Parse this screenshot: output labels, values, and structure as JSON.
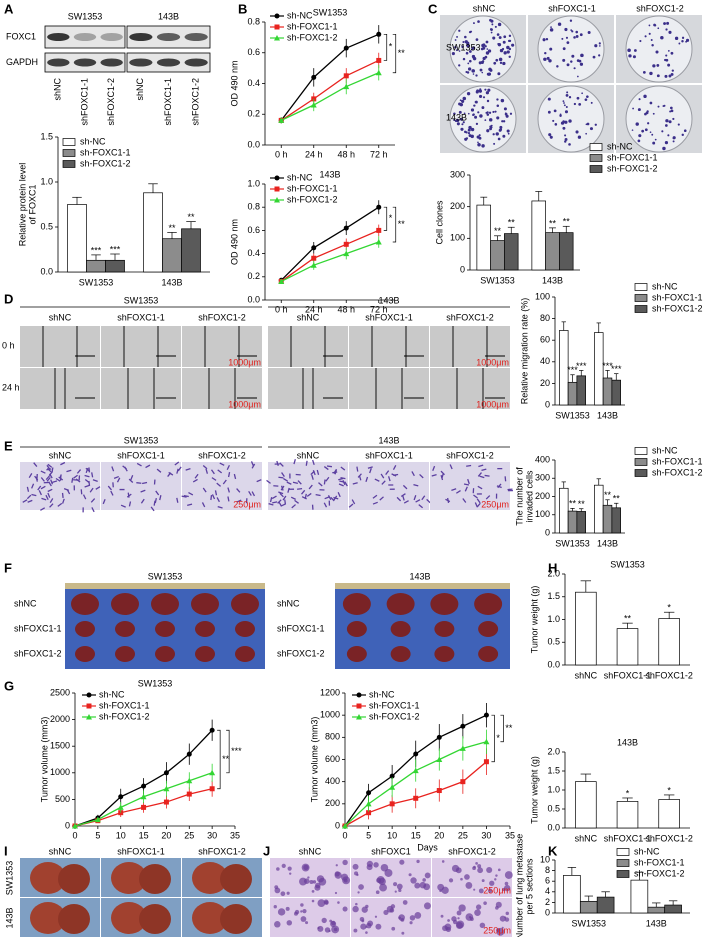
{
  "panel_letters": [
    "A",
    "B",
    "C",
    "D",
    "E",
    "F",
    "G",
    "H",
    "I",
    "J",
    "K"
  ],
  "blot": {
    "proteins": [
      "FOXC1",
      "GAPDH"
    ],
    "groups": [
      "SW1353",
      "143B"
    ],
    "lanes": [
      "shNC",
      "shFOXC1-1",
      "shFOXC1-2"
    ]
  },
  "colonies": {
    "columns": [
      "shNC",
      "shFOXC1-1",
      "shFOXC1-2"
    ],
    "rows": [
      "SW1353",
      "143B"
    ]
  },
  "wound": {
    "groups": [
      "SW1353",
      "143B"
    ],
    "columns": [
      "shNC",
      "shFOXC1-1",
      "shFOXC1-2"
    ],
    "rows": [
      "0 h",
      "24 h"
    ],
    "scale_bar": "1000μm"
  },
  "invasion": {
    "groups": [
      "SW1353",
      "143B"
    ],
    "columns": [
      "shNC",
      "shFOXC1-1",
      "shFOXC1-2"
    ],
    "scale_bar": "250μm"
  },
  "tumors": {
    "groups": [
      "SW1353",
      "143B"
    ],
    "rows": [
      "shNC",
      "shFOXC1-1",
      "shFOXC1-2"
    ]
  },
  "lungs": {
    "columns": [
      "shNC",
      "shFOXC1-1",
      "shFOXC1-2"
    ],
    "rows": [
      "SW1353",
      "143B"
    ]
  },
  "histology": {
    "columns": [
      "shNC",
      "shFOXC1",
      "shFOXC1-2"
    ],
    "scale_bar": "250μm"
  },
  "chart_data": [
    {
      "type": "bar",
      "ylabel": [
        "Relative protein level",
        "of FOXC1"
      ],
      "categories": [
        "SW1353",
        "143B"
      ],
      "series": [
        {
          "name": "sh-NC",
          "color": "#ffffff",
          "values": [
            0.75,
            0.88
          ],
          "errors": [
            0.08,
            0.1
          ]
        },
        {
          "name": "sh-FOXC1-1",
          "color": "#8c8c8c",
          "values": [
            0.13,
            0.37
          ],
          "errors": [
            0.06,
            0.07
          ],
          "significance": [
            "***",
            "**"
          ]
        },
        {
          "name": "sh-FOXC1-2",
          "color": "#5a5a5a",
          "values": [
            0.13,
            0.48
          ],
          "errors": [
            0.07,
            0.08
          ],
          "significance": [
            "***",
            "**"
          ]
        }
      ],
      "ylim": [
        0,
        1.5
      ],
      "yticks": [
        {
          "value": 0,
          "label": "0.0"
        },
        0.5,
        {
          "value": 1,
          "label": "1.0"
        },
        1.5
      ],
      "legend": "upper left"
    },
    {
      "type": "line",
      "title": "SW1353",
      "ylabel": [
        "OD 490 nm"
      ],
      "categories": [
        "0 h",
        "24 h",
        "48 h",
        "72 h"
      ],
      "series": [
        {
          "name": "sh-NC",
          "color": "#000000",
          "values": [
            0.16,
            0.44,
            0.63,
            0.72
          ],
          "errors": [
            0.02,
            0.06,
            0.06,
            0.06
          ]
        },
        {
          "name": "sh-FOXC1-1",
          "color": "#e8231f",
          "values": [
            0.16,
            0.3,
            0.45,
            0.55
          ],
          "errors": [
            0.02,
            0.04,
            0.05,
            0.05
          ]
        },
        {
          "name": "sh-FOXC1-2",
          "color": "#33d633",
          "values": [
            0.16,
            0.26,
            0.38,
            0.47
          ],
          "errors": [
            0.02,
            0.04,
            0.05,
            0.05
          ]
        }
      ],
      "ylim": [
        0,
        0.8
      ],
      "yticks": [
        {
          "value": 0,
          "label": "0.0"
        },
        0.2,
        0.4,
        0.6,
        0.8
      ],
      "significance": [
        "*",
        "**"
      ],
      "legend": "upper left"
    },
    {
      "type": "line",
      "title": "143B",
      "ylabel": [
        "OD 490 nm"
      ],
      "categories": [
        "0 h",
        "24 h",
        "48 h",
        "72 h"
      ],
      "series": [
        {
          "name": "sh-NC",
          "color": "#000000",
          "values": [
            0.17,
            0.45,
            0.62,
            0.8
          ],
          "errors": [
            0.02,
            0.05,
            0.06,
            0.06
          ]
        },
        {
          "name": "sh-FOXC1-1",
          "color": "#e8231f",
          "values": [
            0.16,
            0.36,
            0.48,
            0.6
          ],
          "errors": [
            0.02,
            0.04,
            0.05,
            0.05
          ]
        },
        {
          "name": "sh-FOXC1-2",
          "color": "#33d633",
          "values": [
            0.16,
            0.3,
            0.4,
            0.5
          ],
          "errors": [
            0.02,
            0.04,
            0.05,
            0.05
          ]
        }
      ],
      "ylim": [
        0,
        1
      ],
      "yticks": [
        {
          "value": 0,
          "label": "0.0"
        },
        0.2,
        0.4,
        0.6,
        0.8,
        {
          "value": 1,
          "label": "1.0"
        }
      ],
      "significance": [
        "*",
        "**"
      ],
      "legend": "upper left"
    },
    {
      "type": "bar",
      "ylabel": [
        "Cell clones"
      ],
      "categories": [
        "SW1353",
        "143B"
      ],
      "series": [
        {
          "name": "sh-NC",
          "color": "#ffffff",
          "values": [
            205,
            218
          ],
          "errors": [
            25,
            30
          ]
        },
        {
          "name": "sh-FOXC1-1",
          "color": "#8c8c8c",
          "values": [
            93,
            118
          ],
          "errors": [
            15,
            15
          ],
          "significance": [
            "**",
            "**"
          ]
        },
        {
          "name": "sh-FOXC1-2",
          "color": "#5a5a5a",
          "values": [
            115,
            118
          ],
          "errors": [
            20,
            20
          ],
          "significance": [
            "**",
            "**"
          ]
        }
      ],
      "ylim": [
        0,
        300
      ],
      "yticks": [
        0,
        100,
        200,
        300
      ],
      "legend": "outside upper right"
    },
    {
      "type": "bar",
      "ylabel": [
        "Relative migration rate (%)"
      ],
      "categories": [
        "SW1353",
        "143B"
      ],
      "series": [
        {
          "name": "sh-NC",
          "color": "#ffffff",
          "values": [
            69,
            67
          ],
          "errors": [
            8,
            9
          ]
        },
        {
          "name": "sh-FOXC1-1",
          "color": "#8c8c8c",
          "values": [
            21,
            25
          ],
          "errors": [
            7,
            7
          ],
          "significance": [
            "***",
            "***"
          ]
        },
        {
          "name": "sh-FOXC1-2",
          "color": "#5a5a5a",
          "values": [
            27,
            23
          ],
          "errors": [
            5,
            6
          ],
          "significance": [
            "***",
            "***"
          ]
        }
      ],
      "ylim": [
        0,
        100
      ],
      "yticks": [
        0,
        20,
        40,
        60,
        80,
        100
      ],
      "legend": "outside upper right"
    },
    {
      "type": "bar",
      "ylabel": [
        "The number of",
        "invaded cells"
      ],
      "categories": [
        "SW1353",
        "143B"
      ],
      "series": [
        {
          "name": "sh-NC",
          "color": "#ffffff",
          "values": [
            245,
            262
          ],
          "errors": [
            35,
            35
          ]
        },
        {
          "name": "sh-FOXC1-1",
          "color": "#8c8c8c",
          "values": [
            120,
            152
          ],
          "errors": [
            15,
            30
          ],
          "significance": [
            "**",
            "**"
          ]
        },
        {
          "name": "sh-FOXC1-2",
          "color": "#5a5a5a",
          "values": [
            118,
            138
          ],
          "errors": [
            15,
            25
          ],
          "significance": [
            "**",
            "**"
          ]
        }
      ],
      "ylim": [
        0,
        400
      ],
      "yticks": [
        0,
        100,
        200,
        300,
        400
      ],
      "legend": "outside upper right"
    },
    {
      "type": "line",
      "title": "SW1353",
      "ylabel": [
        "Tumor volume (mm3)"
      ],
      "x": [
        0,
        5,
        10,
        15,
        20,
        25,
        30
      ],
      "series": [
        {
          "name": "sh-NC",
          "color": "#000000",
          "values": [
            0,
            150,
            550,
            750,
            1000,
            1350,
            1800
          ],
          "errors": [
            0,
            60,
            150,
            150,
            200,
            200,
            200
          ]
        },
        {
          "name": "sh-FOXC1-1",
          "color": "#e8231f",
          "values": [
            0,
            100,
            250,
            350,
            450,
            600,
            700
          ],
          "errors": [
            0,
            40,
            80,
            100,
            120,
            130,
            150
          ]
        },
        {
          "name": "sh-FOXC1-2",
          "color": "#33d633",
          "values": [
            0,
            120,
            350,
            550,
            700,
            850,
            1000
          ],
          "errors": [
            0,
            50,
            100,
            120,
            150,
            160,
            170
          ]
        }
      ],
      "xlim": [
        0,
        35
      ],
      "xticks": [
        0,
        5,
        10,
        15,
        20,
        25,
        30,
        35
      ],
      "ylim": [
        0,
        2500
      ],
      "yticks": [
        0,
        500,
        1000,
        1500,
        2000,
        2500
      ],
      "significance": [
        "**",
        "***"
      ],
      "legend": "upper left"
    },
    {
      "type": "line",
      "xlabel": "Days",
      "ylabel": [
        "Tumor volume (mm3)"
      ],
      "x": [
        0,
        5,
        10,
        15,
        20,
        25,
        30
      ],
      "series": [
        {
          "name": "sh-NC",
          "color": "#000000",
          "values": [
            0,
            300,
            450,
            650,
            800,
            900,
            1000
          ],
          "errors": [
            0,
            80,
            100,
            120,
            120,
            110,
            110
          ]
        },
        {
          "name": "sh-FOXC1-1",
          "color": "#e8231f",
          "values": [
            0,
            120,
            200,
            250,
            320,
            400,
            580
          ],
          "errors": [
            0,
            60,
            80,
            90,
            100,
            110,
            120
          ]
        },
        {
          "name": "sh-FOXC1-2",
          "color": "#33d633",
          "values": [
            0,
            200,
            350,
            500,
            600,
            700,
            760
          ],
          "errors": [
            0,
            70,
            90,
            100,
            100,
            110,
            110
          ]
        }
      ],
      "xlim": [
        0,
        35
      ],
      "xticks": [
        0,
        5,
        10,
        15,
        20,
        25,
        30,
        35
      ],
      "ylim": [
        0,
        1200
      ],
      "yticks": [
        0,
        200,
        400,
        600,
        800,
        1000,
        1200
      ],
      "significance": [
        "*",
        "**"
      ],
      "legend": "upper left"
    },
    {
      "type": "bar",
      "title": "SW1353",
      "ylabel": [
        "Tumor weight (g)"
      ],
      "categories": [
        "shNC",
        "shFOXC1-1",
        "shFOXC1-2"
      ],
      "series": [
        {
          "color": "#ffffff",
          "values": [
            1.6,
            0.8,
            1.02
          ],
          "errors": [
            0.25,
            0.12,
            0.14
          ]
        }
      ],
      "annotations": [
        {
          "index": 1,
          "text": "**"
        },
        {
          "index": 2,
          "text": "*"
        }
      ],
      "ylim": [
        0,
        2
      ],
      "yticks": [
        {
          "value": 0,
          "label": "0.0"
        },
        0.5,
        {
          "value": 1,
          "label": "1.0"
        },
        1.5,
        {
          "value": 2,
          "label": "2.0"
        }
      ]
    },
    {
      "type": "bar",
      "title": "143B",
      "ylabel": [
        "Tumor weight (g)"
      ],
      "categories": [
        "shNC",
        "shFOXC1-1",
        "shFOXC1-2"
      ],
      "series": [
        {
          "color": "#ffffff",
          "values": [
            1.22,
            0.7,
            0.75
          ],
          "errors": [
            0.2,
            0.09,
            0.12
          ]
        }
      ],
      "annotations": [
        {
          "index": 1,
          "text": "*"
        },
        {
          "index": 2,
          "text": "*"
        }
      ],
      "ylim": [
        0,
        2
      ],
      "yticks": [
        {
          "value": 0,
          "label": "0.0"
        },
        0.5,
        {
          "value": 1,
          "label": "1.0"
        },
        1.5,
        {
          "value": 2,
          "label": "2.0"
        }
      ]
    },
    {
      "type": "bar",
      "ylabel": [
        "Number of lung metastase",
        "per 5 sections"
      ],
      "categories": [
        "SW1353",
        "143B"
      ],
      "series": [
        {
          "name": "sh-NC",
          "color": "#ffffff",
          "values": [
            7.1,
            6.2
          ],
          "errors": [
            1.5,
            1.5
          ]
        },
        {
          "name": "sh-FOXC1-1",
          "color": "#8c8c8c",
          "values": [
            2.2,
            1.1
          ],
          "errors": [
            1,
            0.8
          ]
        },
        {
          "name": "sh-FOXC1-2",
          "color": "#5a5a5a",
          "values": [
            3,
            1.5
          ],
          "errors": [
            1,
            0.8
          ]
        }
      ],
      "annotations": [],
      "ylim": [
        0,
        10
      ],
      "yticks": [
        0,
        2,
        4,
        6,
        8,
        10
      ],
      "legend": "upper right"
    }
  ]
}
